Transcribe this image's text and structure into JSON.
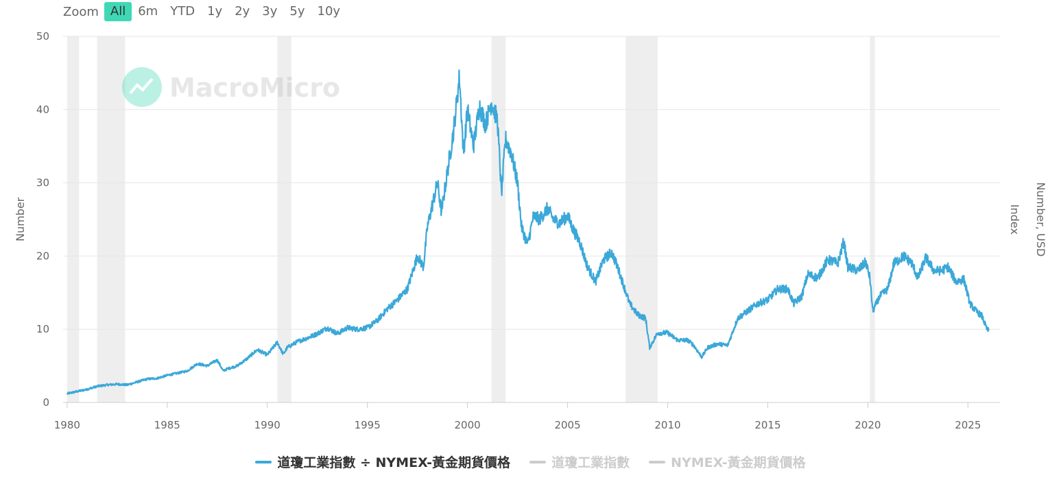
{
  "zoom": {
    "label": "Zoom",
    "buttons": [
      "All",
      "6m",
      "YTD",
      "1y",
      "2y",
      "3y",
      "5y",
      "10y"
    ],
    "active": "All"
  },
  "watermark": "MacroMicro",
  "colors": {
    "series": "#3ba8d8",
    "recession": "#eeeeee",
    "grid": "#e6e6e6",
    "accent": "#3fd8b5",
    "legend_inactive": "#cccccc"
  },
  "chart_data": {
    "type": "line",
    "title": "",
    "ylabel": "Number",
    "right_axis_titles": [
      "Number, USD",
      "Index"
    ],
    "xlabel": "",
    "xlim": [
      1979.8,
      2026.6
    ],
    "ylim": [
      0,
      50
    ],
    "yticks": [
      0,
      10,
      20,
      30,
      40,
      50
    ],
    "xticks": [
      1980,
      1985,
      1990,
      1995,
      2000,
      2005,
      2010,
      2015,
      2020,
      2025
    ],
    "recessions": [
      [
        1980.0,
        1980.6
      ],
      [
        1981.5,
        1982.9
      ],
      [
        1990.5,
        1991.2
      ],
      [
        2001.2,
        2001.9
      ],
      [
        2007.9,
        2009.5
      ],
      [
        2020.1,
        2020.35
      ]
    ],
    "series": [
      {
        "name": "道瓊工業指數 ÷ NYMEX-黃金期貨價格",
        "visible": true,
        "points": [
          [
            1980.0,
            1.2
          ],
          [
            1980.5,
            1.5
          ],
          [
            1981.0,
            1.8
          ],
          [
            1981.5,
            2.2
          ],
          [
            1982.0,
            2.4
          ],
          [
            1982.5,
            2.5
          ],
          [
            1983.0,
            2.4
          ],
          [
            1983.5,
            2.8
          ],
          [
            1984.0,
            3.2
          ],
          [
            1984.5,
            3.3
          ],
          [
            1985.0,
            3.7
          ],
          [
            1985.5,
            4.0
          ],
          [
            1986.0,
            4.3
          ],
          [
            1986.5,
            5.3
          ],
          [
            1987.0,
            5.0
          ],
          [
            1987.5,
            5.8
          ],
          [
            1987.8,
            4.3
          ],
          [
            1988.0,
            4.6
          ],
          [
            1988.5,
            5.0
          ],
          [
            1989.0,
            6.0
          ],
          [
            1989.5,
            7.2
          ],
          [
            1990.0,
            6.5
          ],
          [
            1990.5,
            8.2
          ],
          [
            1990.8,
            6.6
          ],
          [
            1991.0,
            7.5
          ],
          [
            1991.5,
            8.3
          ],
          [
            1992.0,
            8.8
          ],
          [
            1992.5,
            9.4
          ],
          [
            1993.0,
            10.2
          ],
          [
            1993.5,
            9.4
          ],
          [
            1994.0,
            10.2
          ],
          [
            1994.5,
            10.0
          ],
          [
            1995.0,
            10.2
          ],
          [
            1995.5,
            11.2
          ],
          [
            1996.0,
            12.8
          ],
          [
            1996.5,
            14.0
          ],
          [
            1997.0,
            15.5
          ],
          [
            1997.5,
            20.0
          ],
          [
            1997.8,
            18.5
          ],
          [
            1998.0,
            24.0
          ],
          [
            1998.5,
            30.0
          ],
          [
            1998.7,
            26.0
          ],
          [
            1999.0,
            31.5
          ],
          [
            1999.3,
            37.0
          ],
          [
            1999.6,
            44.5
          ],
          [
            1999.8,
            34.0
          ],
          [
            2000.0,
            40.0
          ],
          [
            2000.3,
            35.0
          ],
          [
            2000.6,
            40.5
          ],
          [
            2000.9,
            38.0
          ],
          [
            2001.2,
            41.0
          ],
          [
            2001.5,
            38.5
          ],
          [
            2001.7,
            28.5
          ],
          [
            2001.9,
            36.0
          ],
          [
            2002.2,
            34.0
          ],
          [
            2002.5,
            30.0
          ],
          [
            2002.7,
            24.0
          ],
          [
            2003.0,
            21.5
          ],
          [
            2003.3,
            25.5
          ],
          [
            2003.6,
            25.0
          ],
          [
            2004.0,
            26.5
          ],
          [
            2004.3,
            25.0
          ],
          [
            2004.6,
            24.5
          ],
          [
            2005.0,
            25.5
          ],
          [
            2005.3,
            23.5
          ],
          [
            2005.6,
            22.0
          ],
          [
            2006.0,
            18.5
          ],
          [
            2006.4,
            16.5
          ],
          [
            2006.8,
            19.5
          ],
          [
            2007.2,
            20.5
          ],
          [
            2007.5,
            18.5
          ],
          [
            2007.8,
            16.0
          ],
          [
            2008.1,
            13.5
          ],
          [
            2008.5,
            12.0
          ],
          [
            2008.9,
            11.5
          ],
          [
            2009.1,
            7.5
          ],
          [
            2009.5,
            9.5
          ],
          [
            2010.0,
            9.5
          ],
          [
            2010.5,
            8.5
          ],
          [
            2011.0,
            8.5
          ],
          [
            2011.3,
            7.8
          ],
          [
            2011.7,
            6.2
          ],
          [
            2012.0,
            7.5
          ],
          [
            2012.5,
            8.0
          ],
          [
            2013.0,
            7.8
          ],
          [
            2013.5,
            11.5
          ],
          [
            2014.0,
            12.5
          ],
          [
            2014.5,
            13.5
          ],
          [
            2015.0,
            14.0
          ],
          [
            2015.5,
            15.5
          ],
          [
            2016.0,
            15.5
          ],
          [
            2016.3,
            13.5
          ],
          [
            2016.7,
            14.5
          ],
          [
            2017.0,
            17.5
          ],
          [
            2017.5,
            17.0
          ],
          [
            2018.0,
            19.5
          ],
          [
            2018.5,
            19.0
          ],
          [
            2018.8,
            22.0
          ],
          [
            2019.0,
            18.5
          ],
          [
            2019.5,
            18.0
          ],
          [
            2019.9,
            19.2
          ],
          [
            2020.1,
            17.0
          ],
          [
            2020.25,
            12.5
          ],
          [
            2020.6,
            14.5
          ],
          [
            2021.0,
            15.5
          ],
          [
            2021.3,
            19.0
          ],
          [
            2021.8,
            20.0
          ],
          [
            2022.2,
            19.0
          ],
          [
            2022.5,
            17.0
          ],
          [
            2022.9,
            19.8
          ],
          [
            2023.3,
            18.0
          ],
          [
            2023.7,
            18.0
          ],
          [
            2024.0,
            18.5
          ],
          [
            2024.4,
            16.5
          ],
          [
            2024.8,
            16.8
          ],
          [
            2025.1,
            13.5
          ],
          [
            2025.4,
            12.5
          ],
          [
            2025.7,
            11.8
          ],
          [
            2025.95,
            10.0
          ],
          [
            2026.05,
            9.8
          ]
        ]
      },
      {
        "name": "道瓊工業指數",
        "visible": false
      },
      {
        "name": "NYMEX-黃金期貨價格",
        "visible": false
      }
    ]
  }
}
